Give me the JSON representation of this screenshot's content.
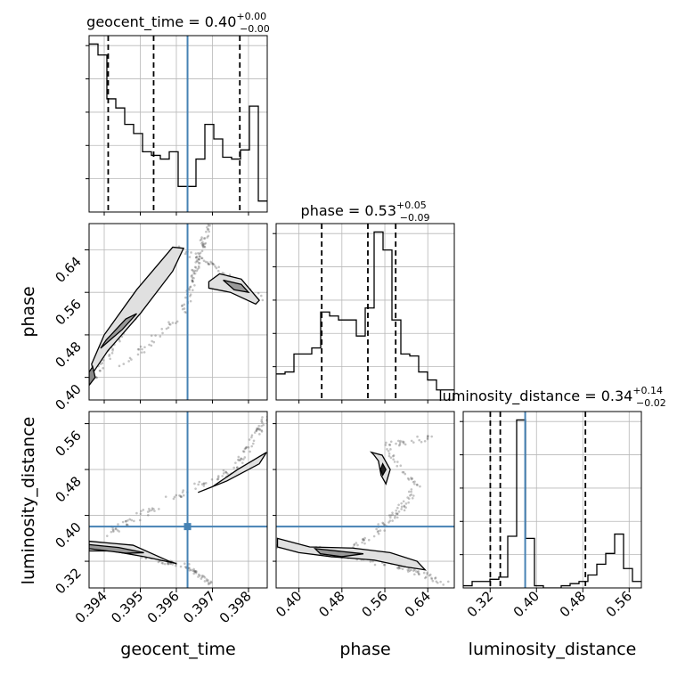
{
  "chart_data": {
    "type": "corner",
    "parameters": [
      "geocent_time",
      "phase",
      "luminosity_distance"
    ],
    "truths": {
      "geocent_time": 0.39631,
      "phase": null,
      "luminosity_distance": 0.3805
    },
    "titles": [
      {
        "name": "geocent_time",
        "value": "0.40",
        "plus": "+0.00",
        "minus": "−0.00"
      },
      {
        "name": "phase",
        "value": "0.53",
        "plus": "+0.05",
        "minus": "−0.09"
      },
      {
        "name": "luminosity_distance",
        "value": "0.34",
        "plus": "+0.14",
        "minus": "−0.02"
      }
    ],
    "axes": {
      "geocent_time": {
        "label": "geocent_time",
        "range": [
          0.39358,
          0.39852
        ],
        "ticks": [
          "0.394",
          "0.395",
          "0.396",
          "0.397",
          "0.398"
        ]
      },
      "phase": {
        "label": "phase",
        "range": [
          0.3575,
          0.6894
        ],
        "ticks": [
          "0.40",
          "0.48",
          "0.56",
          "0.64"
        ]
      },
      "luminosity_distance": {
        "label": "luminosity_distance",
        "range": [
          0.2735,
          0.5811
        ],
        "ticks": [
          "0.32",
          "0.40",
          "0.48",
          "0.56"
        ]
      }
    },
    "histograms": {
      "geocent_time": {
        "range": [
          0.39358,
          0.39852
        ],
        "quantiles": [
          0.39411,
          0.39537,
          0.39776
        ],
        "counts": [
          92,
          86,
          62,
          57,
          48,
          43,
          33,
          31,
          29,
          33,
          14,
          14,
          29,
          48,
          40,
          30,
          29,
          34,
          58,
          6
        ]
      },
      "phase": {
        "range": [
          0.3575,
          0.6894
        ],
        "quantiles": [
          0.4424,
          0.5284,
          0.5802
        ],
        "counts": [
          13,
          14,
          23,
          23,
          26,
          44,
          42,
          40,
          40,
          32,
          46,
          84,
          75,
          40,
          23,
          22,
          14,
          10,
          5,
          5
        ]
      },
      "luminosity_distance": {
        "range": [
          0.2735,
          0.5811
        ],
        "quantiles": [
          0.3203,
          0.3375,
          0.4845
        ],
        "counts": [
          1,
          3,
          3,
          4,
          5,
          24,
          78,
          23,
          1,
          0,
          0,
          1,
          2,
          3,
          6,
          11,
          16,
          25,
          9,
          3
        ]
      }
    }
  }
}
